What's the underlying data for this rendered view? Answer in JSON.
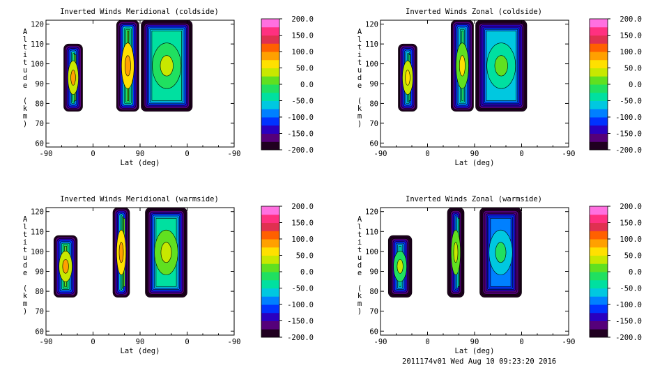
{
  "chart_data": [
    {
      "type": "heatmap",
      "title": "Inverted Winds Meridional (coldside)",
      "xlabel": "Lat (deg)",
      "ylabel": "Altitude (km)",
      "xticks": [
        "-90",
        "0",
        "90",
        "0",
        "-90"
      ],
      "yticks": [
        60,
        70,
        80,
        90,
        100,
        110,
        120
      ],
      "ylim": [
        58,
        122
      ],
      "colorbar": {
        "ticks": [
          "200.0",
          "150.0",
          "100.0",
          "50.0",
          "0.0",
          "-50.0",
          "-100.0",
          "-150.0",
          "-200.0"
        ],
        "range": [
          -200,
          200
        ]
      },
      "blocks": [
        {
          "lat_start": -56,
          "lat_end": -20,
          "alt_bottom": 76,
          "alt_top": 110,
          "mean_value": 10
        },
        {
          "lat_start": 45,
          "lat_end": 88,
          "alt_bottom": 76,
          "alt_top": 122,
          "mean_value": 20
        },
        {
          "lat_start": 92,
          "lat_end": 190,
          "alt_bottom": 76,
          "alt_top": 122,
          "mean_value": -40
        }
      ]
    },
    {
      "type": "heatmap",
      "title": "Inverted Winds Zonal (coldside)",
      "xlabel": "Lat (deg)",
      "ylabel": "Altitude (km)",
      "xticks": [
        "-90",
        "0",
        "90",
        "0",
        "-90"
      ],
      "yticks": [
        60,
        70,
        80,
        90,
        100,
        110,
        120
      ],
      "ylim": [
        58,
        122
      ],
      "colorbar": {
        "ticks": [
          "200.0",
          "150.0",
          "100.0",
          "50.0",
          "0.0",
          "-50.0",
          "-100.0",
          "-150.0",
          "-200.0"
        ],
        "range": [
          -200,
          200
        ]
      },
      "blocks": [
        {
          "lat_start": -56,
          "lat_end": -20,
          "alt_bottom": 76,
          "alt_top": 110,
          "mean_value": -10
        },
        {
          "lat_start": 45,
          "lat_end": 88,
          "alt_bottom": 76,
          "alt_top": 122,
          "mean_value": -20
        },
        {
          "lat_start": 92,
          "lat_end": 190,
          "alt_bottom": 76,
          "alt_top": 122,
          "mean_value": -70
        }
      ]
    },
    {
      "type": "heatmap",
      "title": "Inverted Winds Meridional (warmside)",
      "xlabel": "Lat (deg)",
      "ylabel": "Altitude (km)",
      "xticks": [
        "-90",
        "0",
        "90",
        "0",
        "-90"
      ],
      "yticks": [
        60,
        70,
        80,
        90,
        100,
        110,
        120
      ],
      "ylim": [
        58,
        122
      ],
      "colorbar": {
        "ticks": [
          "200.0",
          "150.0",
          "100.0",
          "50.0",
          "0.0",
          "-50.0",
          "-100.0",
          "-150.0",
          "-200.0"
        ],
        "range": [
          -200,
          200
        ]
      },
      "blocks": [
        {
          "lat_start": -75,
          "lat_end": -30,
          "alt_bottom": 77,
          "alt_top": 108,
          "mean_value": 10
        },
        {
          "lat_start": 38,
          "lat_end": 70,
          "alt_bottom": 77,
          "alt_top": 122,
          "mean_value": 20
        },
        {
          "lat_start": 100,
          "lat_end": 180,
          "alt_bottom": 77,
          "alt_top": 122,
          "mean_value": -30
        }
      ]
    },
    {
      "type": "heatmap",
      "title": "Inverted Winds Zonal (warmside)",
      "xlabel": "Lat (deg)",
      "ylabel": "Altitude (km)",
      "xticks": [
        "-90",
        "0",
        "90",
        "0",
        "-90"
      ],
      "yticks": [
        60,
        70,
        80,
        90,
        100,
        110,
        120
      ],
      "ylim": [
        58,
        122
      ],
      "colorbar": {
        "ticks": [
          "200.0",
          "150.0",
          "100.0",
          "50.0",
          "0.0",
          "-50.0",
          "-100.0",
          "-150.0",
          "-200.0"
        ],
        "range": [
          -200,
          200
        ]
      },
      "blocks": [
        {
          "lat_start": -75,
          "lat_end": -30,
          "alt_bottom": 77,
          "alt_top": 108,
          "mean_value": -40
        },
        {
          "lat_start": 38,
          "lat_end": 70,
          "alt_bottom": 77,
          "alt_top": 122,
          "mean_value": -30
        },
        {
          "lat_start": 100,
          "lat_end": 180,
          "alt_bottom": 77,
          "alt_top": 122,
          "mean_value": -90
        }
      ]
    }
  ],
  "footer": "2011174v01 Wed Aug 10 09:23:20 2016",
  "colors": {
    "palette": [
      "#200020",
      "#55007a",
      "#2a00c0",
      "#0033ff",
      "#0080ff",
      "#00c8e0",
      "#00e0a0",
      "#20e060",
      "#60e020",
      "#c8e800",
      "#ffe000",
      "#ffa000",
      "#ff6000",
      "#e03050",
      "#ff3080",
      "#ff70e0"
    ]
  }
}
